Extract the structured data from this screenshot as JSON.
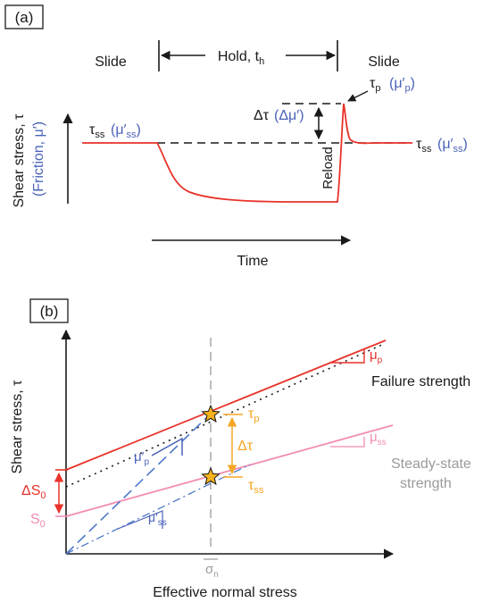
{
  "panel_a": {
    "label": "(a)",
    "slide_left": "Slide",
    "hold": "Hold, t",
    "hold_sub": "h",
    "slide_right": "Slide",
    "ylabel": "Shear stress, τ",
    "ylabel_sub": "(Friction, μ′)",
    "xlabel": "Time",
    "reload": "Reload",
    "tau_ss_left": "τ",
    "tau_ss_left_sub": "ss",
    "mu_ss_left": "(μ′",
    "mu_ss_left_sub": "ss",
    "mu_ss_left_close": ")",
    "tau_ss_right": "τ",
    "tau_ss_right_sub": "ss",
    "mu_ss_right": "(μ′",
    "mu_ss_right_sub": "ss",
    "mu_ss_right_close": ")",
    "tau_p": "τ",
    "tau_p_sub": "p",
    "mu_p": "(μ′",
    "mu_p_sub": "p",
    "mu_p_close": ")",
    "delta_tau": "Δτ",
    "delta_mu": "(Δμ′)"
  },
  "panel_b": {
    "label": "(b)",
    "ylabel": "Shear stress, τ",
    "xlabel": "Effective normal stress",
    "sigma": "σ",
    "sigma_sub": "n",
    "failure": "Failure strength",
    "steady1": "Steady-state",
    "steady2": "strength",
    "mu_p": "μ",
    "mu_p_sub": "p",
    "mu_ss": "μ",
    "mu_ss_sub": "ss",
    "mu_p_prime": "μ′",
    "mu_p_prime_sub": "p",
    "mu_ss_prime": "μ′",
    "mu_ss_prime_sub": "ss",
    "tau_p": "τ",
    "tau_p_sub": "p",
    "tau_ss": "τ",
    "tau_ss_sub": "ss",
    "delta_tau": "Δτ",
    "delta_s0": "ΔS",
    "delta_s0_sub": "0",
    "s0": "S",
    "s0_sub": "0"
  },
  "colors": {
    "red": "#e8322a",
    "pink": "#f28cb4",
    "blue": "#4a62b8",
    "dashblue": "#4d78c8",
    "orange": "#f5a623",
    "grey": "#9a9a9a",
    "black": "#1a1a1a",
    "star": "#f5b21c"
  }
}
